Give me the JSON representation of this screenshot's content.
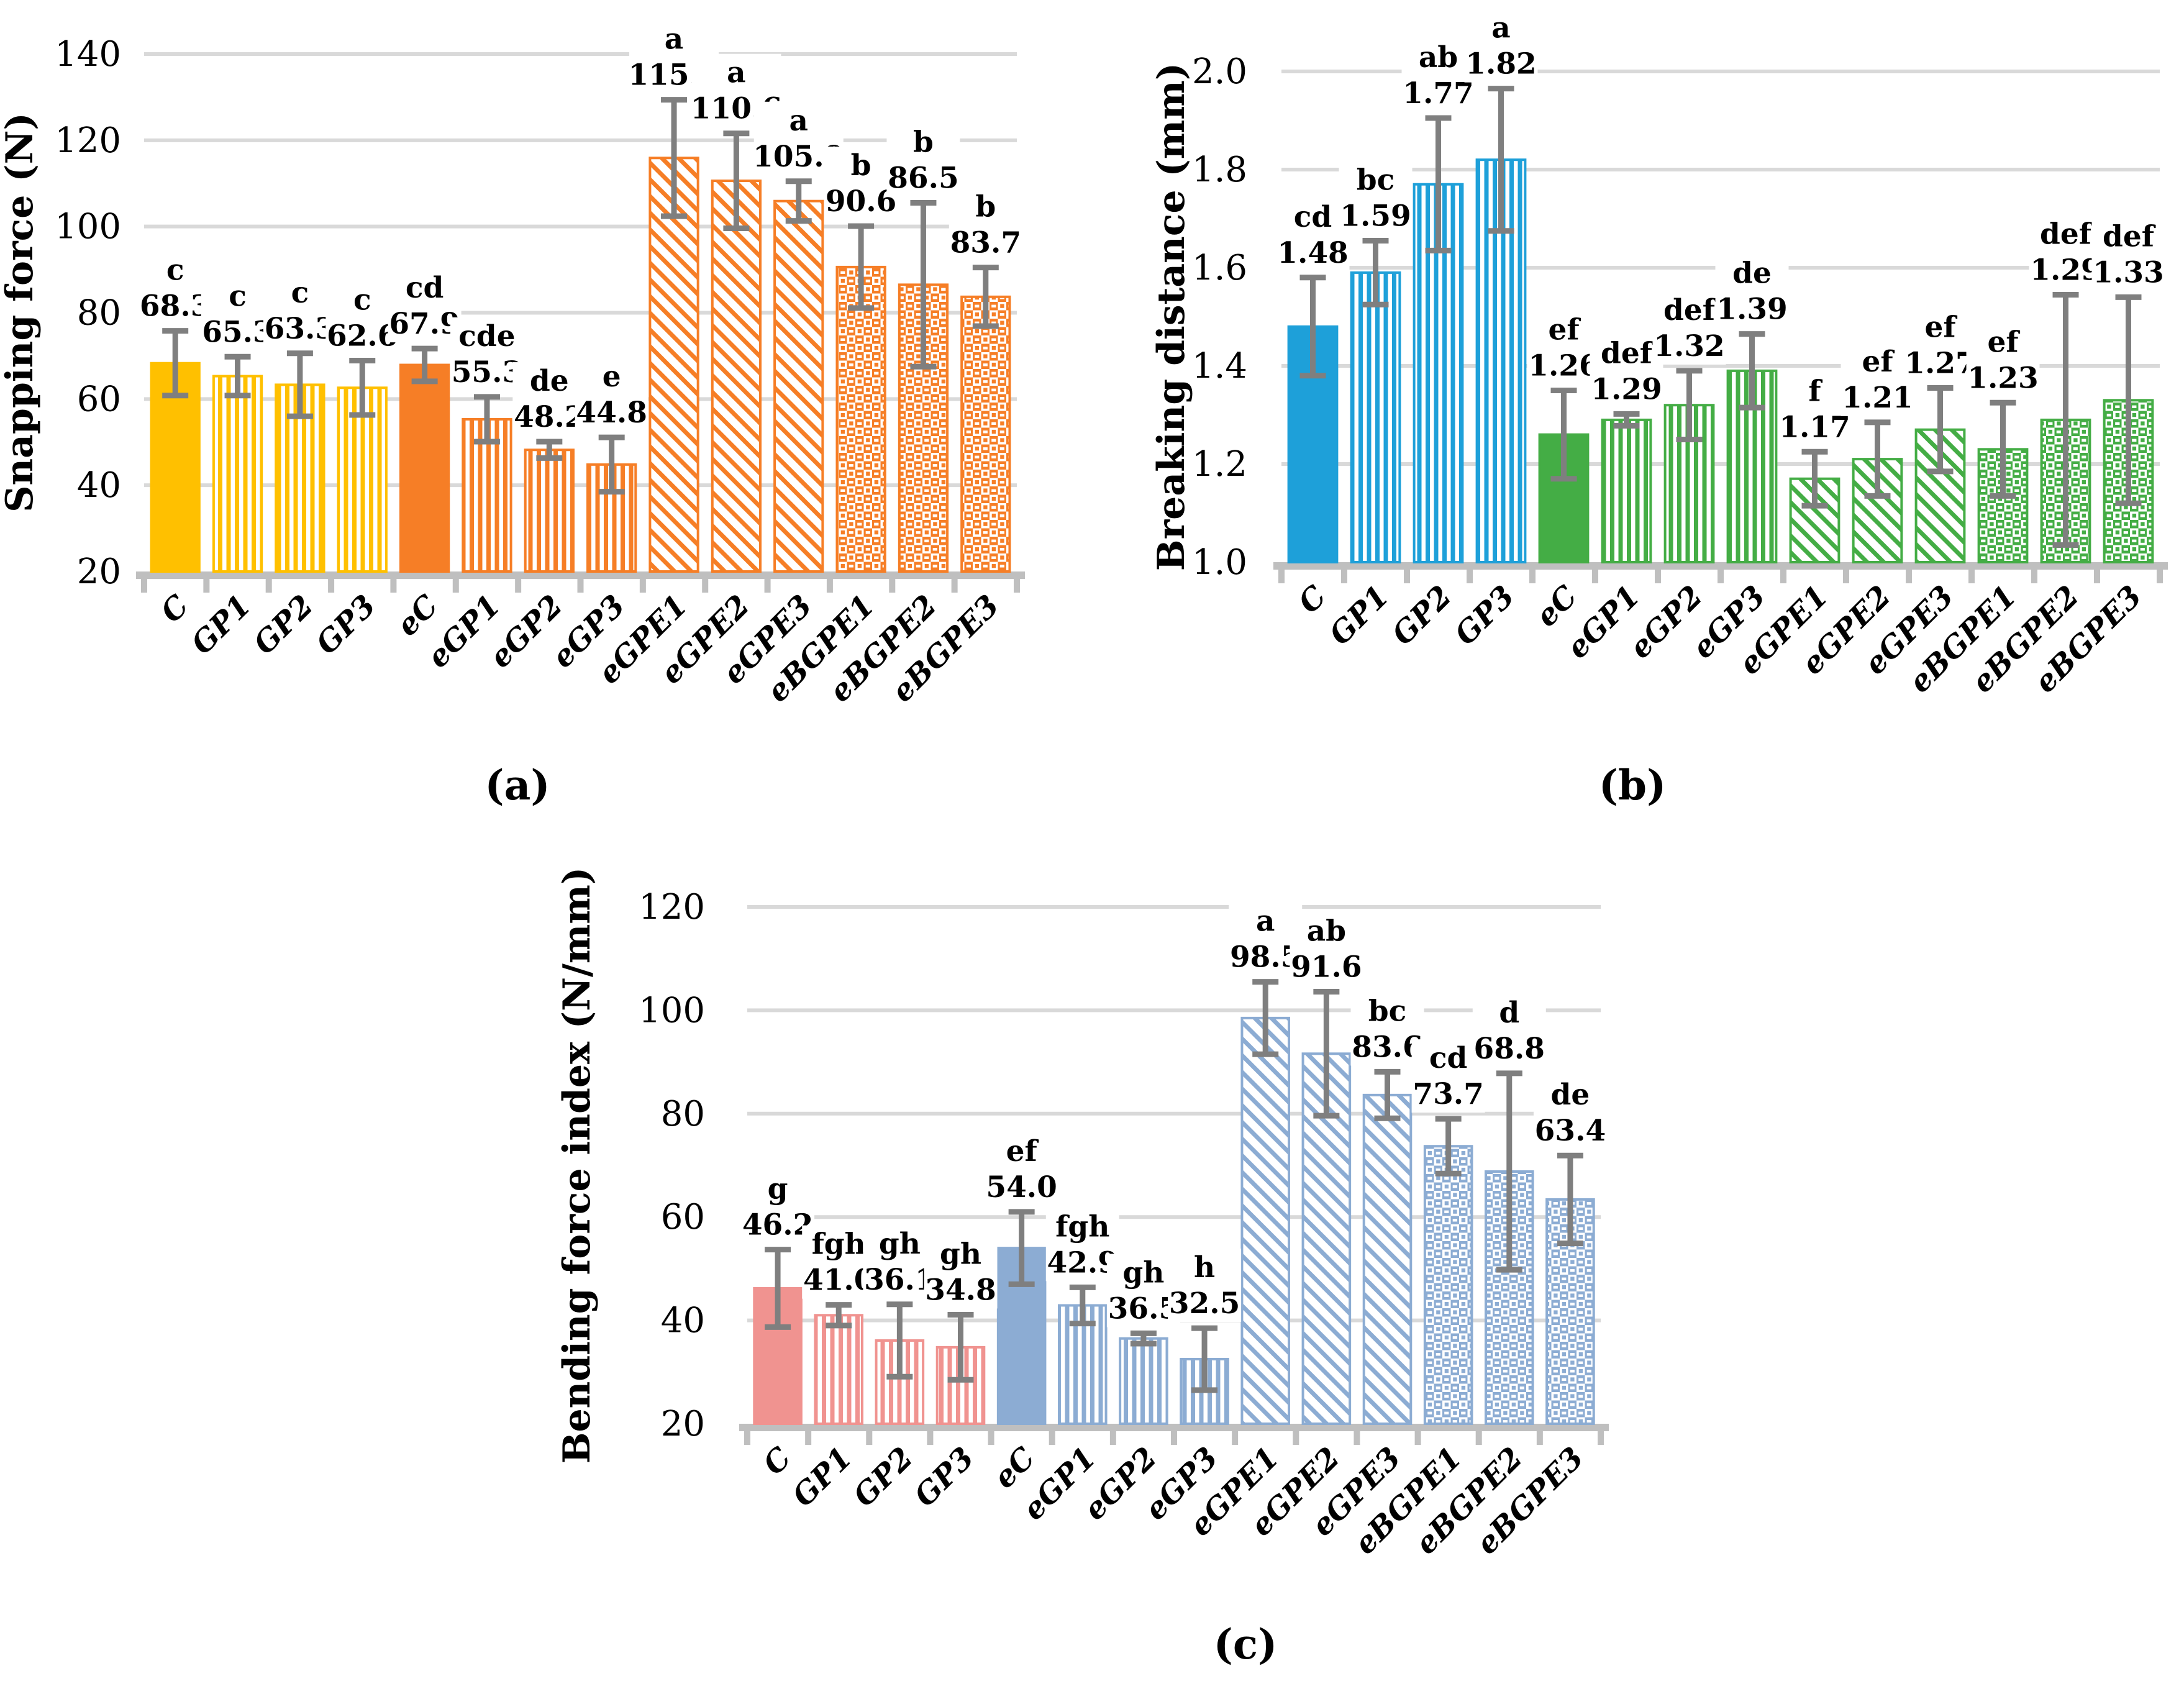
{
  "chart_data": [
    {
      "id": "a",
      "type": "bar",
      "caption": "(a)",
      "ylabel": "Snapping force (N)",
      "ylim": [
        20,
        140
      ],
      "ytick_values": [
        20,
        40,
        60,
        80,
        100,
        120,
        140
      ],
      "ytick_labels": [
        "20",
        "40",
        "60",
        "80",
        "100",
        "120",
        "140"
      ],
      "grid": true,
      "legend_position": "none",
      "categories": [
        "C",
        "GP1",
        "GP2",
        "GP3",
        "eC",
        "eGP1",
        "eGP2",
        "eGP3",
        "eGPE1",
        "eGPE2",
        "eGPE3",
        "eBGPE1",
        "eBGPE2",
        "eBGPE3"
      ],
      "values": [
        68.3,
        65.3,
        63.3,
        62.6,
        67.9,
        55.3,
        48.2,
        44.8,
        115.9,
        110.6,
        105.9,
        90.6,
        86.5,
        83.7
      ],
      "value_labels": [
        "68.3",
        "65.3",
        "63.3",
        "62.6",
        "67.9",
        "55.3",
        "48.2",
        "44.8",
        "115.9",
        "110.6",
        "105.9",
        "90.6",
        "86.5",
        "83.7"
      ],
      "errors": [
        7.5,
        4.5,
        7.3,
        6.3,
        3.8,
        5.2,
        1.9,
        6.3,
        13.5,
        11.0,
        4.6,
        9.5,
        19.0,
        6.8
      ],
      "letters": [
        "c",
        "c",
        "c",
        "c",
        "cd",
        "cde",
        "de",
        "e",
        "a",
        "a",
        "a",
        "b",
        "b",
        "b"
      ],
      "colors": {
        "group1": "#FFC000",
        "group2": "#F67E26"
      }
    },
    {
      "id": "b",
      "type": "bar",
      "caption": "(b)",
      "ylabel": "Breaking distance (mm)",
      "ylim": [
        1.0,
        2.0
      ],
      "ytick_values": [
        1.0,
        1.2,
        1.4,
        1.6,
        1.8,
        2.0
      ],
      "ytick_labels": [
        "1.0",
        "1.2",
        "1.4",
        "1.6",
        "1.8",
        "2.0"
      ],
      "grid": true,
      "legend_position": "none",
      "categories": [
        "C",
        "GP1",
        "GP2",
        "GP3",
        "eC",
        "eGP1",
        "eGP2",
        "eGP3",
        "eGPE1",
        "eGPE2",
        "eGPE3",
        "eBGPE1",
        "eBGPE2",
        "eBGPE3"
      ],
      "values": [
        1.48,
        1.59,
        1.77,
        1.82,
        1.26,
        1.29,
        1.32,
        1.39,
        1.17,
        1.21,
        1.27,
        1.23,
        1.29,
        1.33
      ],
      "value_labels": [
        "1.48",
        "1.59",
        "1.77",
        "1.82",
        "1.26",
        "1.29",
        "1.32",
        "1.39",
        "1.17",
        "1.21",
        "1.27",
        "1.23",
        "1.29",
        "1.33"
      ],
      "errors": [
        0.1,
        0.065,
        0.135,
        0.145,
        0.09,
        0.012,
        0.07,
        0.075,
        0.055,
        0.075,
        0.085,
        0.095,
        0.255,
        0.21
      ],
      "letters": [
        "cd",
        "bc",
        "ab",
        "a",
        "ef",
        "def",
        "def",
        "de",
        "f",
        "ef",
        "ef",
        "ef",
        "def",
        "def"
      ],
      "colors": {
        "group1": "#1EA0D9",
        "group2": "#44AD45"
      }
    },
    {
      "id": "c",
      "type": "bar",
      "caption": "(c)",
      "ylabel": "Bending force index (N/mm)",
      "ylim": [
        20,
        120
      ],
      "ytick_values": [
        20,
        40,
        60,
        80,
        100,
        120
      ],
      "ytick_labels": [
        "20",
        "40",
        "60",
        "80",
        "100",
        "120"
      ],
      "grid": true,
      "legend_position": "none",
      "categories": [
        "C",
        "GP1",
        "GP2",
        "GP3",
        "eC",
        "eGP1",
        "eGP2",
        "eGP3",
        "eGPE1",
        "eGPE2",
        "eGPE3",
        "eBGPE1",
        "eBGPE2",
        "eBGPE3"
      ],
      "values": [
        46.2,
        41.0,
        36.1,
        34.8,
        54.0,
        42.9,
        36.5,
        32.5,
        98.5,
        91.6,
        83.6,
        73.7,
        68.8,
        63.4
      ],
      "value_labels": [
        "46.2",
        "41.0",
        "36.1",
        "34.8",
        "54.0",
        "42.9",
        "36.5",
        "32.5",
        "98.5",
        "91.6",
        "83.6",
        "73.7",
        "68.8",
        "63.4"
      ],
      "errors": [
        7.5,
        2.0,
        7.0,
        6.3,
        7.0,
        3.5,
        1.0,
        6.0,
        7.0,
        12.0,
        4.5,
        5.3,
        19.0,
        8.5
      ],
      "letters": [
        "g",
        "fgh",
        "gh",
        "gh",
        "ef",
        "fgh",
        "gh",
        "h",
        "a",
        "ab",
        "bc",
        "cd",
        "d",
        "de"
      ],
      "colors": {
        "group1": "#F09390",
        "group2": "#8CACD3"
      }
    }
  ],
  "style": {
    "pattern_by_index": [
      "solid",
      "vstripe",
      "vstripe",
      "vstripe",
      "solid",
      "vstripe",
      "vstripe",
      "vstripe",
      "diag",
      "diag",
      "diag",
      "check",
      "check",
      "check"
    ],
    "error_bar_color": "#7F7F7F",
    "axis_color": "#BFBFBF",
    "grid_color": "#D9D9D9",
    "text_color": "#000000",
    "background_color": "#FFFFFF"
  }
}
